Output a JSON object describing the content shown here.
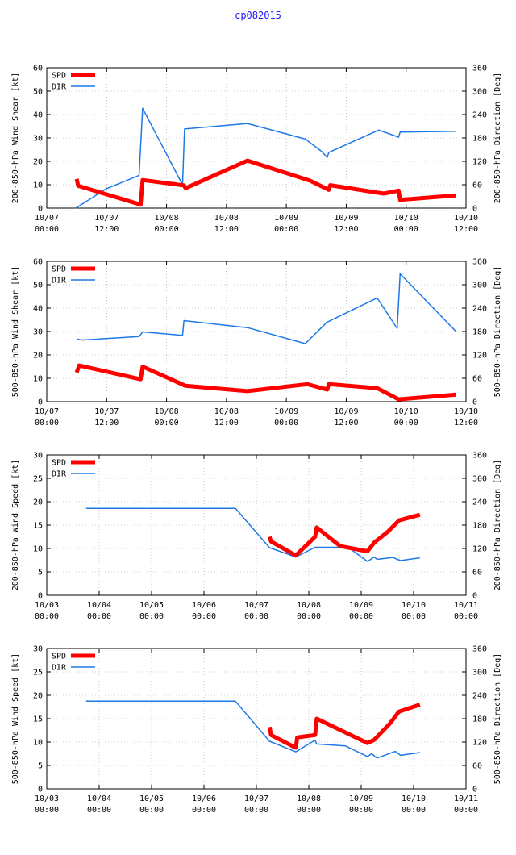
{
  "page": {
    "title": "cp082015"
  },
  "colors": {
    "spd": "#ff0000",
    "dir": "#1e78e6",
    "axis": "#000000",
    "grid": "#a0a0a0"
  },
  "chart_data": [
    {
      "type": "line",
      "id": "shear-200-850",
      "ylabel": "200-850-hPa Wind Shear [kt]",
      "y2label": "200-850-hPa Direction [Deg]",
      "xlim": [
        0,
        84
      ],
      "ylim": [
        0,
        60
      ],
      "y2lim": [
        0,
        360
      ],
      "grid": true,
      "legend": "top-left",
      "x_ticks": [
        0,
        12,
        24,
        36,
        48,
        60,
        72,
        84
      ],
      "x_tick_labels": [
        [
          "10/07",
          "00:00"
        ],
        [
          "10/07",
          "12:00"
        ],
        [
          "10/08",
          "00:00"
        ],
        [
          "10/08",
          "12:00"
        ],
        [
          "10/09",
          "00:00"
        ],
        [
          "10/09",
          "12:00"
        ],
        [
          "10/10",
          "00:00"
        ],
        [
          "10/10",
          "12:00"
        ]
      ],
      "y_ticks": [
        0,
        10,
        20,
        30,
        40,
        50,
        60
      ],
      "y2_ticks": [
        0,
        60,
        120,
        180,
        240,
        300,
        360
      ],
      "series": [
        {
          "name": "SPD",
          "axis": "y",
          "color": "#ff0000",
          "width": 5,
          "points": [
            [
              6,
              12.5
            ],
            [
              6.3,
              9.5
            ],
            [
              18.8,
              1.5
            ],
            [
              19.2,
              12
            ],
            [
              27.5,
              9.7
            ],
            [
              27.8,
              8.5
            ],
            [
              40.2,
              20.3
            ],
            [
              52.8,
              11.7
            ],
            [
              56.5,
              7.8
            ],
            [
              56.8,
              9.8
            ],
            [
              67.5,
              6.2
            ],
            [
              70.5,
              7.5
            ],
            [
              70.8,
              3.5
            ],
            [
              82,
              5.4
            ]
          ]
        },
        {
          "name": "DIR",
          "axis": "y2",
          "color": "#1e78e6",
          "width": 1.5,
          "points": [
            [
              5.8,
              0
            ],
            [
              12,
              50
            ],
            [
              18.5,
              84
            ],
            [
              19.2,
              256
            ],
            [
              27.2,
              60
            ],
            [
              27.6,
              203
            ],
            [
              40.2,
              217
            ],
            [
              51.8,
              177
            ],
            [
              55,
              146
            ],
            [
              56.2,
              130
            ],
            [
              56.5,
              143
            ],
            [
              66.5,
              200
            ],
            [
              70.5,
              182
            ],
            [
              70.8,
              195
            ],
            [
              82,
              197
            ]
          ]
        }
      ]
    },
    {
      "type": "line",
      "id": "shear-500-850",
      "ylabel": "500-850-hPa Wind Shear [kt]",
      "y2label": "500-850-hPa Direction [Deg]",
      "xlim": [
        0,
        84
      ],
      "ylim": [
        0,
        60
      ],
      "y2lim": [
        0,
        360
      ],
      "grid": true,
      "legend": "top-left",
      "x_ticks": [
        0,
        12,
        24,
        36,
        48,
        60,
        72,
        84
      ],
      "x_tick_labels": [
        [
          "10/07",
          "00:00"
        ],
        [
          "10/07",
          "12:00"
        ],
        [
          "10/08",
          "00:00"
        ],
        [
          "10/08",
          "12:00"
        ],
        [
          "10/09",
          "00:00"
        ],
        [
          "10/09",
          "12:00"
        ],
        [
          "10/10",
          "00:00"
        ],
        [
          "10/10",
          "12:00"
        ]
      ],
      "y_ticks": [
        0,
        10,
        20,
        30,
        40,
        50,
        60
      ],
      "y2_ticks": [
        0,
        60,
        120,
        180,
        240,
        300,
        360
      ],
      "series": [
        {
          "name": "SPD",
          "axis": "y",
          "color": "#ff0000",
          "width": 5,
          "points": [
            [
              6,
              12.5
            ],
            [
              6.5,
              15.5
            ],
            [
              18.8,
              9.6
            ],
            [
              19.2,
              15
            ],
            [
              27.8,
              6.8
            ],
            [
              40.2,
              4.5
            ],
            [
              52.2,
              7.5
            ],
            [
              56.2,
              5.2
            ],
            [
              56.5,
              7.5
            ],
            [
              66.2,
              5.8
            ],
            [
              70.5,
              1
            ],
            [
              82,
              3
            ]
          ]
        },
        {
          "name": "DIR",
          "axis": "y2",
          "color": "#1e78e6",
          "width": 1.5,
          "points": [
            [
              6,
              161
            ],
            [
              7,
              158
            ],
            [
              18.5,
              167
            ],
            [
              19.2,
              179
            ],
            [
              27.2,
              170
            ],
            [
              27.5,
              208
            ],
            [
              40.2,
              190
            ],
            [
              51.8,
              149
            ],
            [
              55.6,
              197
            ],
            [
              56,
              203
            ],
            [
              66.2,
              266
            ],
            [
              70.2,
              188
            ],
            [
              70.8,
              328
            ],
            [
              82,
              180
            ]
          ]
        }
      ]
    },
    {
      "type": "line",
      "id": "speed-200-850",
      "ylabel": "200-850-hPa Wind Speed [kt]",
      "y2label": "200-850-hPa Direction [Deg]",
      "xlim": [
        0,
        8
      ],
      "ylim": [
        0,
        30
      ],
      "y2lim": [
        0,
        360
      ],
      "grid": true,
      "legend": "top-left",
      "x_ticks": [
        0,
        1,
        2,
        3,
        4,
        5,
        6,
        7,
        8
      ],
      "x_tick_labels": [
        [
          "10/03",
          "00:00"
        ],
        [
          "10/04",
          "00:00"
        ],
        [
          "10/05",
          "00:00"
        ],
        [
          "10/06",
          "00:00"
        ],
        [
          "10/07",
          "00:00"
        ],
        [
          "10/08",
          "00:00"
        ],
        [
          "10/09",
          "00:00"
        ],
        [
          "10/10",
          "00:00"
        ],
        [
          "10/11",
          "00:00"
        ]
      ],
      "y_ticks": [
        0,
        5,
        10,
        15,
        20,
        25,
        30
      ],
      "y2_ticks": [
        0,
        60,
        120,
        180,
        240,
        300,
        360
      ],
      "series": [
        {
          "name": "SPD",
          "axis": "y",
          "color": "#ff0000",
          "width": 5,
          "points": [
            [
              4.25,
              12.5
            ],
            [
              4.28,
              11.5
            ],
            [
              4.75,
              8.5
            ],
            [
              5.12,
              12.5
            ],
            [
              5.15,
              14.5
            ],
            [
              5.6,
              10.5
            ],
            [
              6.12,
              9.4
            ],
            [
              6.25,
              11.3
            ],
            [
              6.5,
              13.5
            ],
            [
              6.72,
              16
            ],
            [
              7.12,
              17.2
            ]
          ]
        },
        {
          "name": "DIR",
          "axis": "y2",
          "color": "#1e78e6",
          "width": 1.5,
          "points": [
            [
              0.75,
              223
            ],
            [
              3.6,
              223
            ],
            [
              4.25,
              122
            ],
            [
              4.75,
              98
            ],
            [
              5.12,
              123
            ],
            [
              5.75,
              123
            ],
            [
              6.12,
              87
            ],
            [
              6.25,
              98
            ],
            [
              6.3,
              92
            ],
            [
              6.6,
              97
            ],
            [
              6.75,
              89
            ],
            [
              7.12,
              96
            ]
          ]
        }
      ]
    },
    {
      "type": "line",
      "id": "speed-500-850",
      "ylabel": "500-850-hPa Wind Speed [kt]",
      "y2label": "500-850-hPa Direction [Deg]",
      "xlim": [
        0,
        8
      ],
      "ylim": [
        0,
        30
      ],
      "y2lim": [
        0,
        360
      ],
      "grid": true,
      "legend": "top-left",
      "x_ticks": [
        0,
        1,
        2,
        3,
        4,
        5,
        6,
        7,
        8
      ],
      "x_tick_labels": [
        [
          "10/03",
          "00:00"
        ],
        [
          "10/04",
          "00:00"
        ],
        [
          "10/05",
          "00:00"
        ],
        [
          "10/06",
          "00:00"
        ],
        [
          "10/07",
          "00:00"
        ],
        [
          "10/08",
          "00:00"
        ],
        [
          "10/09",
          "00:00"
        ],
        [
          "10/10",
          "00:00"
        ],
        [
          "10/11",
          "00:00"
        ]
      ],
      "y_ticks": [
        0,
        5,
        10,
        15,
        20,
        25,
        30
      ],
      "y2_ticks": [
        0,
        60,
        120,
        180,
        240,
        300,
        360
      ],
      "series": [
        {
          "name": "SPD",
          "axis": "y",
          "color": "#ff0000",
          "width": 5,
          "points": [
            [
              4.25,
              13.2
            ],
            [
              4.28,
              11.5
            ],
            [
              4.75,
              8.8
            ],
            [
              4.78,
              11
            ],
            [
              5.12,
              11.5
            ],
            [
              5.15,
              15
            ],
            [
              6.12,
              9.8
            ],
            [
              6.25,
              10.5
            ],
            [
              6.55,
              14
            ],
            [
              6.72,
              16.5
            ],
            [
              7.12,
              18
            ]
          ]
        },
        {
          "name": "DIR",
          "axis": "y2",
          "color": "#1e78e6",
          "width": 1.5,
          "points": [
            [
              0.75,
              225
            ],
            [
              3.6,
              225
            ],
            [
              4.25,
              122
            ],
            [
              4.75,
              95
            ],
            [
              5.12,
              125
            ],
            [
              5.15,
              115
            ],
            [
              5.7,
              110
            ],
            [
              6.12,
              83
            ],
            [
              6.2,
              90
            ],
            [
              6.3,
              79
            ],
            [
              6.65,
              96
            ],
            [
              6.75,
              86
            ],
            [
              7.12,
              93
            ]
          ]
        }
      ]
    }
  ]
}
